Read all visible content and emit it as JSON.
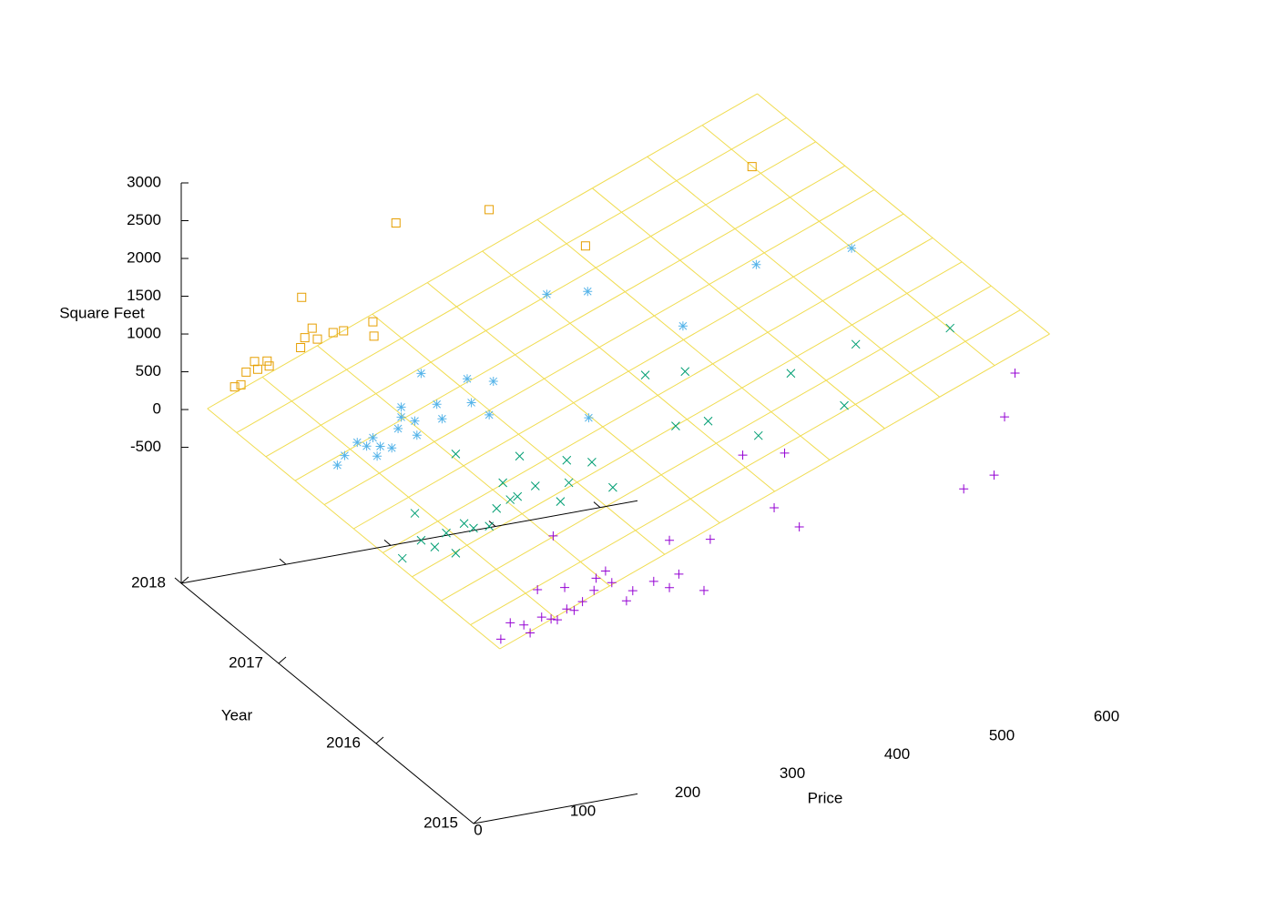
{
  "chart_data": {
    "type": "scatter3d",
    "xlabel": "Price",
    "ylabel": "Year",
    "zlabel": "Square Feet",
    "xlim": [
      0,
      600
    ],
    "xticks": [
      0,
      100,
      200,
      300,
      400,
      500,
      600
    ],
    "ylim": [
      2015,
      2018
    ],
    "yticks": [
      2015,
      2016,
      2017,
      2018
    ],
    "zlim": [
      -2300,
      3000
    ],
    "zticks": [
      -500,
      0,
      500,
      1000,
      1500,
      2000,
      2500,
      3000
    ],
    "surface": {
      "color": "#f0dc50",
      "x": [
        25,
        550
      ],
      "y": [
        2015,
        2018
      ],
      "z": [
        -50,
        2800
      ]
    },
    "series": [
      {
        "color": "#9400d3",
        "marker": "plus",
        "y": 2015,
        "x": [
          26,
          35,
          48,
          54,
          61,
          65,
          74,
          76,
          80,
          87,
          89,
          96,
          104,
          115,
          117,
          126,
          132,
          146,
          152,
          172,
          187,
          187,
          196,
          220,
          226,
          257,
          287,
          297,
          311,
          468,
          497,
          507,
          517
        ],
        "z": [
          76,
          269,
          208,
          88,
          642,
          269,
          221,
          1317,
          196,
          606,
          317,
          281,
          377,
          498,
          654,
          727,
          558,
          281,
          401,
          474,
          980,
          353,
          510,
          233,
          895,
          1932,
          1160,
          1859,
          847,
          955,
          1064,
          1811,
          2365
        ]
      },
      {
        "color": "#009e73",
        "marker": "cross",
        "y": 2016,
        "x": [
          25,
          37,
          43,
          56,
          67,
          76,
          76,
          84,
          93,
          108,
          115,
          121,
          128,
          135,
          137,
          152,
          176,
          182,
          184,
          206,
          226,
          257,
          286,
          295,
          317,
          365,
          396,
          447,
          458,
          548
        ],
        "z": [
          88,
          654,
          281,
          160,
          317,
          28,
          1341,
          401,
          317,
          305,
          522,
          847,
          606,
          630,
          1160,
          727,
          461,
          992,
          690,
          907,
          522,
          1932,
          1185,
          1883,
          1172,
          859,
          1606,
          1052,
          1835,
          1823
        ]
      },
      {
        "color": "#56b4e9",
        "marker": "star",
        "y": 2017,
        "x": [
          56,
          63,
          75,
          84,
          90,
          94,
          97,
          108,
          114,
          117,
          117,
          130,
          132,
          136,
          151,
          156,
          180,
          184,
          201,
          205,
          256,
          295,
          296,
          386,
          456,
          547
        ],
        "z": [
          184,
          293,
          437,
          365,
          461,
          208,
          329,
          281,
          522,
          799,
          666,
          582,
          389,
          1197,
          751,
          546,
          1016,
          690,
          486,
          919,
          1944,
          1883,
          208,
          1197,
          1835,
          1823
        ]
      },
      {
        "color": "#e69f00",
        "marker": "square",
        "y": 2018,
        "x": [
          51,
          57,
          62,
          73,
          70,
          82,
          84,
          114,
          118,
          125,
          130,
          145,
          155,
          115,
          183,
          184,
          205,
          294,
          386,
          545
        ],
        "z": [
          172,
          184,
          341,
          350,
          461,
          437,
          365,
          534,
          654,
          763,
          606,
          654,
          654,
          1197,
          702,
          510,
          1956,
          1908,
          1197,
          1847
        ]
      }
    ]
  }
}
